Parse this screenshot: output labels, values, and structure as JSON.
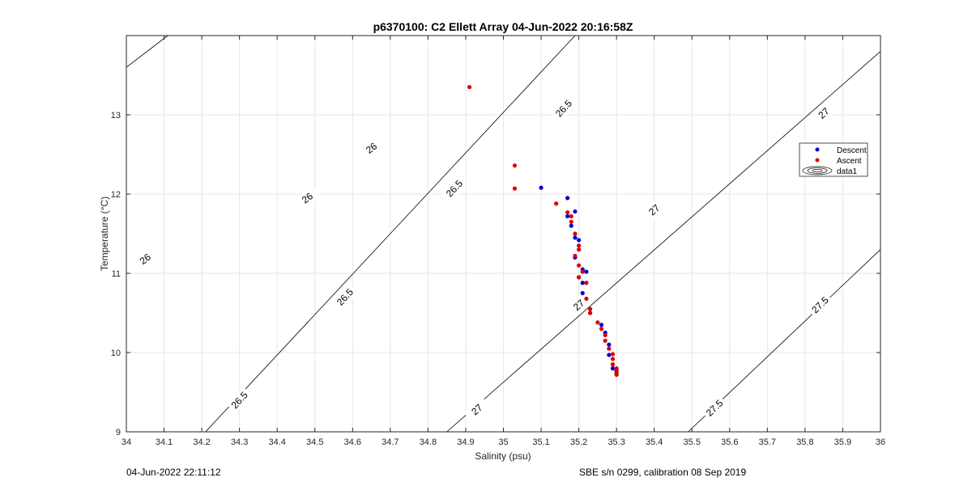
{
  "chart_data": {
    "type": "scatter",
    "title": "p6370100: C2 Ellett Array 04-Jun-2022 20:16:58Z",
    "xlabel": "Salinity (psu)",
    "ylabel": "Temperature (°C)",
    "xlim": [
      34,
      36
    ],
    "ylim": [
      9,
      14
    ],
    "xticks": [
      "34",
      "34.1",
      "34.2",
      "34.3",
      "34.4",
      "34.5",
      "34.6",
      "34.7",
      "34.8",
      "34.9",
      "35",
      "35.1",
      "35.2",
      "35.3",
      "35.4",
      "35.5",
      "35.6",
      "35.7",
      "35.8",
      "35.9",
      "36"
    ],
    "yticks": [
      "9",
      "10",
      "11",
      "12",
      "13"
    ],
    "grid": true,
    "legend_position": "right",
    "density_contours": [
      {
        "level": 26,
        "label": "26",
        "p0": [
          34.0,
          13.6
        ],
        "p1": [
          34.11,
          14.0
        ],
        "labels": [
          {
            "x": 34.48,
            "y": 11.95,
            "text": "26"
          },
          {
            "x": 34.05,
            "y": 11.18,
            "text": "26"
          },
          {
            "x": 34.65,
            "y": 12.58,
            "text": "26"
          }
        ]
      },
      {
        "level": 26.5,
        "label": "26.5",
        "p0": [
          34.21,
          9.0
        ],
        "p1": [
          35.19,
          14.0
        ],
        "labels": [
          {
            "x": 34.3,
            "y": 9.4,
            "text": "26.5"
          },
          {
            "x": 34.58,
            "y": 10.7,
            "text": "26.5"
          },
          {
            "x": 34.87,
            "y": 12.07,
            "text": "26.5"
          },
          {
            "x": 35.16,
            "y": 13.08,
            "text": "26.5"
          }
        ]
      },
      {
        "level": 27,
        "label": "27",
        "p0": [
          34.85,
          9.0
        ],
        "p1": [
          36.0,
          13.8
        ],
        "labels": [
          {
            "x": 34.93,
            "y": 9.28,
            "text": "27"
          },
          {
            "x": 35.2,
            "y": 10.6,
            "text": "27"
          },
          {
            "x": 35.4,
            "y": 11.8,
            "text": "27"
          },
          {
            "x": 35.85,
            "y": 13.02,
            "text": "27"
          }
        ]
      },
      {
        "level": 27.5,
        "label": "27.5",
        "p0": [
          35.49,
          9.0
        ],
        "p1": [
          36.0,
          11.3
        ],
        "labels": [
          {
            "x": 35.56,
            "y": 9.3,
            "text": "27.5"
          },
          {
            "x": 35.84,
            "y": 10.6,
            "text": "27.5"
          }
        ]
      }
    ],
    "series": [
      {
        "name": "Descent",
        "color": "#0000cc",
        "points": [
          [
            35.1,
            12.08
          ],
          [
            35.17,
            11.95
          ],
          [
            35.19,
            11.78
          ],
          [
            35.17,
            11.72
          ],
          [
            35.18,
            11.6
          ],
          [
            35.19,
            11.45
          ],
          [
            35.2,
            11.42
          ],
          [
            35.19,
            11.2
          ],
          [
            35.21,
            11.05
          ],
          [
            35.22,
            11.02
          ],
          [
            35.2,
            10.95
          ],
          [
            35.21,
            10.88
          ],
          [
            35.21,
            10.75
          ],
          [
            35.23,
            10.5
          ],
          [
            35.26,
            10.35
          ],
          [
            35.27,
            10.25
          ],
          [
            35.28,
            10.1
          ],
          [
            35.28,
            9.97
          ],
          [
            35.29,
            9.85
          ],
          [
            35.29,
            9.8
          ],
          [
            35.3,
            9.77
          ],
          [
            35.3,
            9.73
          ]
        ]
      },
      {
        "name": "Ascent",
        "color": "#dd0000",
        "points": [
          [
            34.91,
            13.35
          ],
          [
            35.03,
            12.36
          ],
          [
            35.03,
            12.07
          ],
          [
            35.14,
            11.88
          ],
          [
            35.17,
            11.77
          ],
          [
            35.18,
            11.72
          ],
          [
            35.18,
            11.65
          ],
          [
            35.19,
            11.5
          ],
          [
            35.2,
            11.35
          ],
          [
            35.2,
            11.3
          ],
          [
            35.19,
            11.22
          ],
          [
            35.2,
            11.1
          ],
          [
            35.21,
            11.02
          ],
          [
            35.2,
            10.95
          ],
          [
            35.22,
            10.88
          ],
          [
            35.22,
            10.68
          ],
          [
            35.23,
            10.55
          ],
          [
            35.23,
            10.5
          ],
          [
            35.25,
            10.38
          ],
          [
            35.26,
            10.3
          ],
          [
            35.27,
            10.22
          ],
          [
            35.27,
            10.15
          ],
          [
            35.28,
            10.05
          ],
          [
            35.29,
            9.98
          ],
          [
            35.29,
            9.92
          ],
          [
            35.29,
            9.85
          ],
          [
            35.3,
            9.8
          ],
          [
            35.3,
            9.75
          ],
          [
            35.3,
            9.72
          ]
        ]
      }
    ],
    "legend": [
      "Descent",
      "Ascent",
      "data1"
    ]
  },
  "footer": {
    "left": "04-Jun-2022 22:11:12",
    "right": "SBE s/n 0299, calibration 08 Sep 2019"
  }
}
